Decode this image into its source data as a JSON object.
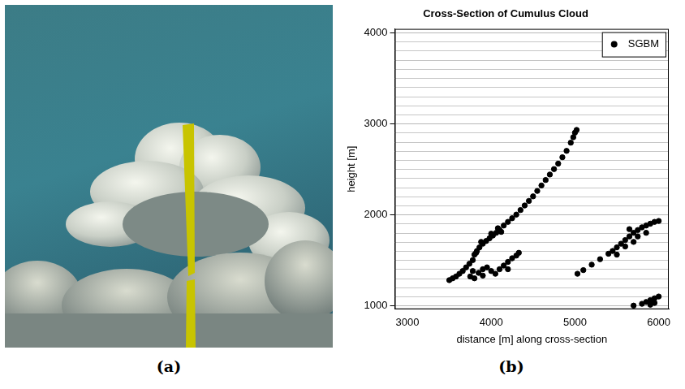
{
  "panel_labels": [
    "(a)",
    "(b)"
  ],
  "chart_data": {
    "type": "scatter",
    "title": "Cross-Section of Cumulus Cloud",
    "x_label": "distance [m] along cross-section",
    "y_label": "height [m]",
    "x": [
      3500,
      3540,
      3580,
      3620,
      3660,
      3700,
      3740,
      3780,
      3800,
      3830,
      3860,
      3900,
      3940,
      3980,
      4020,
      4060,
      4100,
      4150,
      4200,
      4250,
      4300,
      4350,
      4400,
      4450,
      4500,
      4550,
      4600,
      4650,
      4700,
      4750,
      4800,
      4850,
      4900,
      4950,
      4980,
      5000,
      5020,
      3820,
      3880,
      4000,
      4120,
      4080,
      3750,
      3800,
      3850,
      3900,
      3950,
      4000,
      4050,
      4100,
      4150,
      4200,
      4250,
      4300,
      4330,
      3900,
      4200,
      3780,
      5030,
      5100,
      5200,
      5300,
      5400,
      5450,
      5500,
      5550,
      5600,
      5650,
      5700,
      5750,
      5800,
      5850,
      5900,
      5950,
      6000,
      5500,
      5600,
      5700,
      5750,
      5650,
      5850,
      5700,
      5800,
      5850,
      5900,
      5950,
      6000,
      5900,
      5950
    ],
    "series": [
      {
        "name": "SGBM",
        "color": "#000000",
        "marker": "circle",
        "values": [
          1280,
          1300,
          1320,
          1350,
          1380,
          1420,
          1460,
          1500,
          1560,
          1600,
          1640,
          1680,
          1710,
          1740,
          1770,
          1800,
          1830,
          1880,
          1920,
          1960,
          2000,
          2050,
          2100,
          2150,
          2200,
          2260,
          2320,
          2380,
          2440,
          2500,
          2560,
          2630,
          2700,
          2790,
          2850,
          2900,
          2930,
          1580,
          1700,
          1790,
          1810,
          1850,
          1320,
          1300,
          1360,
          1400,
          1420,
          1380,
          1350,
          1400,
          1440,
          1480,
          1520,
          1550,
          1580,
          1330,
          1400,
          1380,
          1350,
          1390,
          1450,
          1510,
          1570,
          1600,
          1640,
          1680,
          1720,
          1760,
          1800,
          1830,
          1860,
          1880,
          1900,
          1920,
          1930,
          1560,
          1650,
          1700,
          1760,
          1840,
          1800,
          1000,
          1020,
          1040,
          1060,
          1080,
          1100,
          1010,
          1030
        ]
      }
    ],
    "xlim": [
      2850,
      6120
    ],
    "xticks": [
      3000,
      4000,
      5000,
      6000
    ],
    "ylim": [
      960,
      4040
    ],
    "yticks": [
      1000,
      2000,
      3000,
      4000
    ],
    "grid": "y",
    "legend": "top-right"
  }
}
